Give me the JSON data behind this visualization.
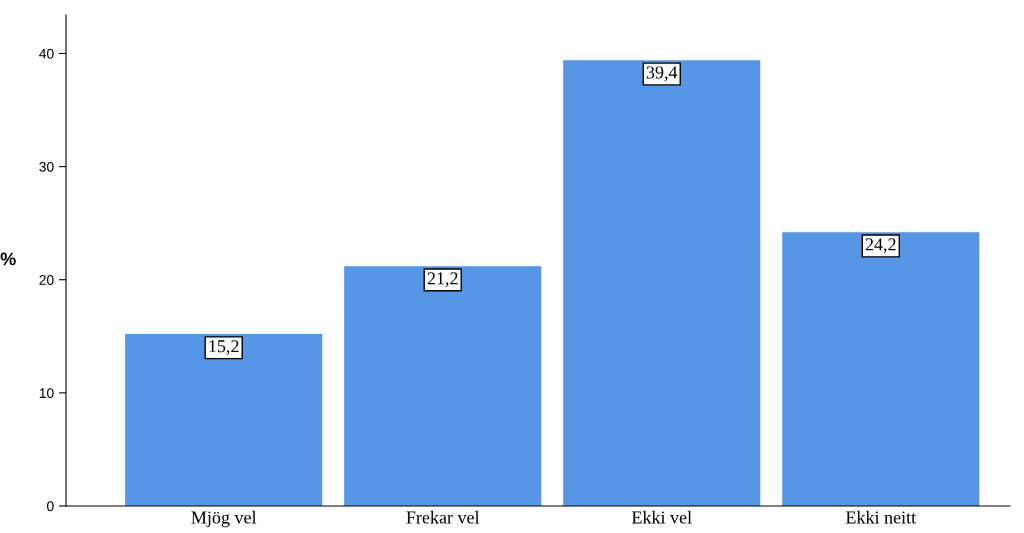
{
  "chart_data": {
    "type": "bar",
    "ylabel": "%",
    "categories": [
      "Mjög vel",
      "Frekar vel",
      "Ekki vel",
      "Ekki neitt"
    ],
    "values": [
      15.2,
      21.2,
      39.4,
      24.2
    ],
    "value_labels": [
      "15,2",
      "21,2",
      "39,4",
      "24,2"
    ],
    "color": "#5596e6",
    "ylim": [
      0,
      43.4
    ],
    "yticks": [
      0,
      10,
      20,
      30,
      40
    ],
    "grid": false
  }
}
